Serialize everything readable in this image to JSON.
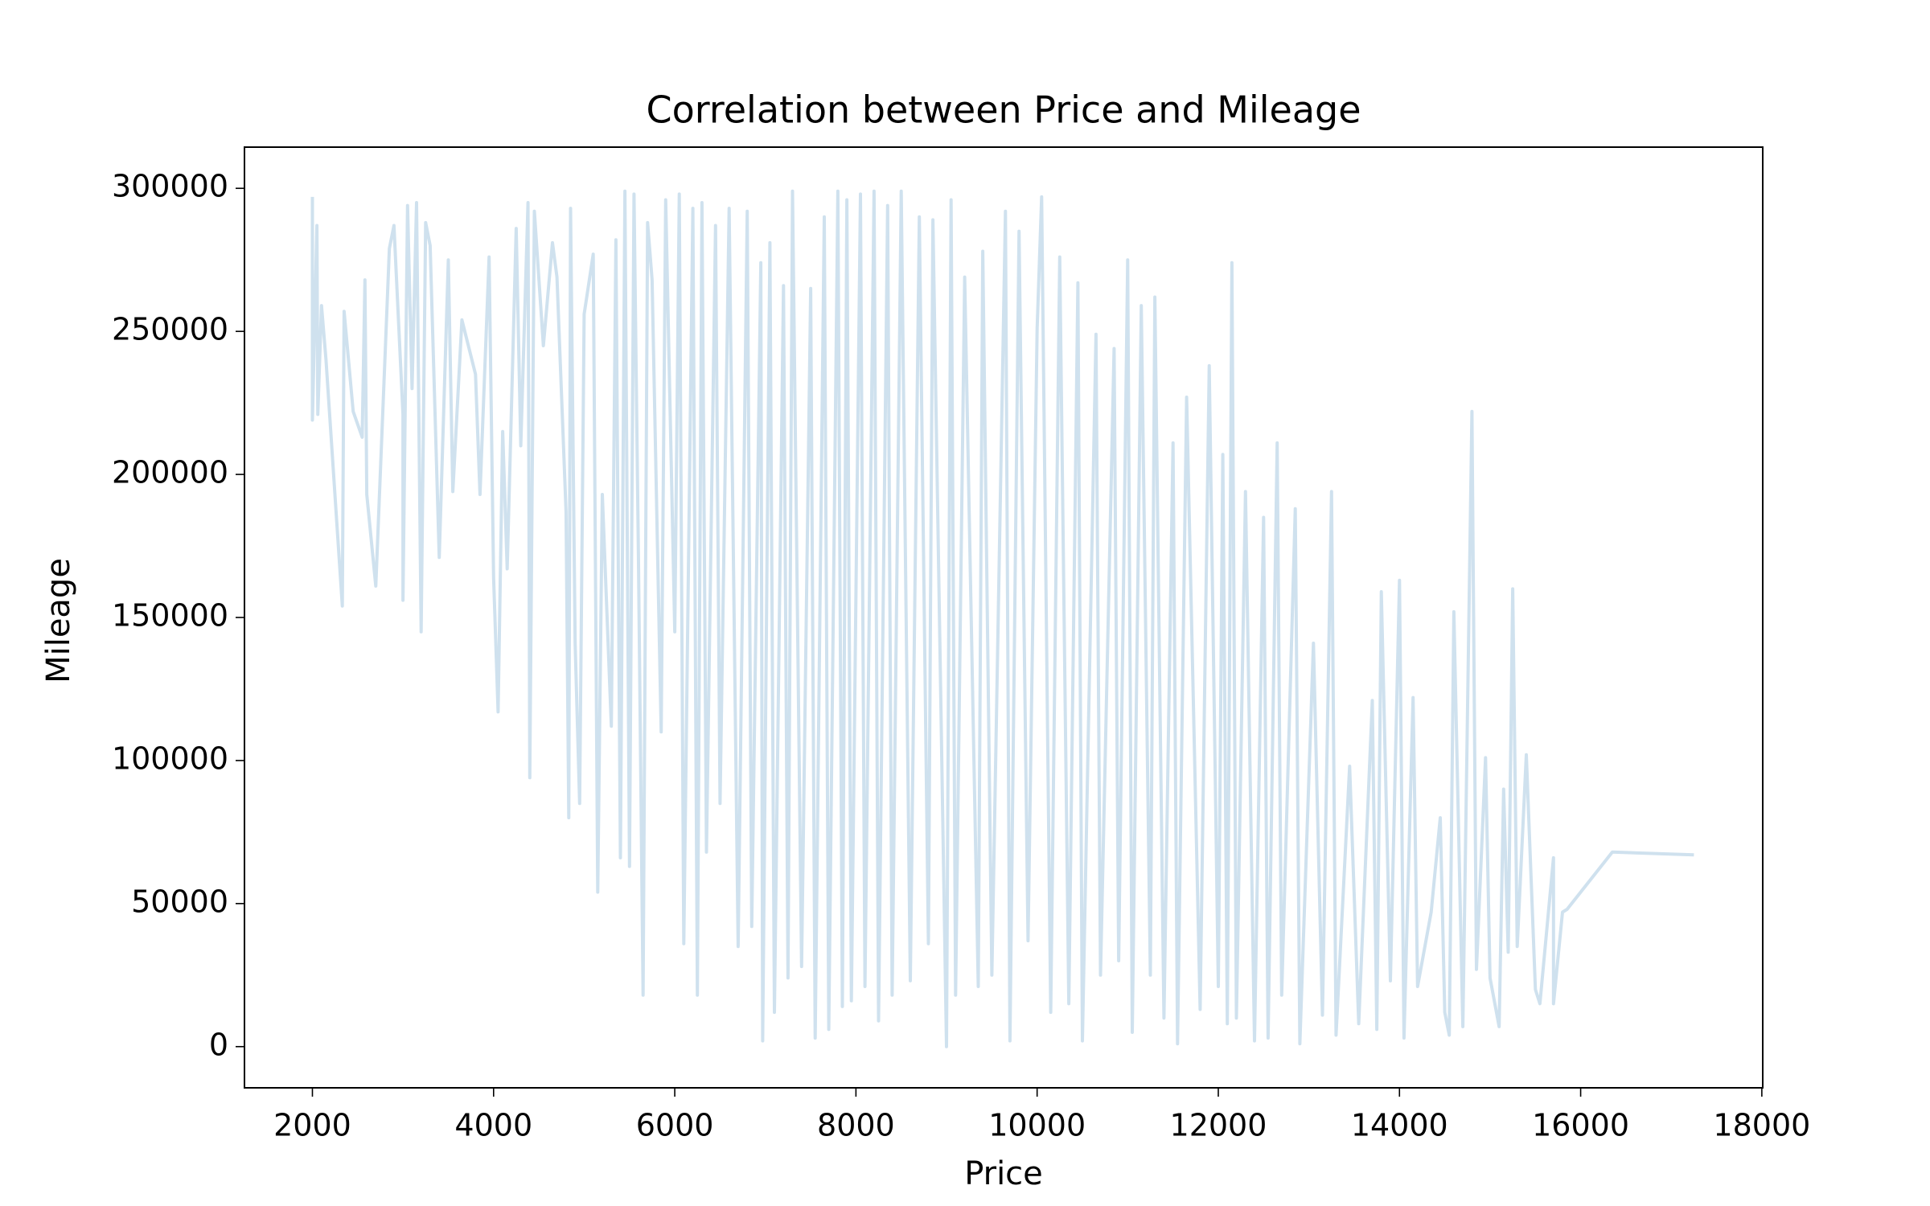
{
  "chart_data": {
    "type": "line",
    "title": "Correlation between Price and Mileage",
    "x_label": "Price",
    "y_label": "Mileage",
    "color": "#cfe1ee",
    "x": [
      2000,
      2000,
      2050,
      2060,
      2100,
      2150,
      2330,
      2350,
      2450,
      2550,
      2580,
      2600,
      2700,
      2850,
      2900,
      3000,
      3000,
      3050,
      3100,
      3150,
      3200,
      3250,
      3300,
      3400,
      3500,
      3550,
      3650,
      3800,
      3850,
      3950,
      4000,
      4050,
      4100,
      4150,
      4250,
      4300,
      4380,
      4400,
      4450,
      4550,
      4650,
      4700,
      4800,
      4830,
      4850,
      4900,
      4950,
      5000,
      5100,
      5150,
      5200,
      5300,
      5350,
      5400,
      5450,
      5500,
      5550,
      5600,
      5650,
      5700,
      5750,
      5850,
      5900,
      6000,
      6050,
      6100,
      6200,
      6250,
      6300,
      6350,
      6450,
      6500,
      6600,
      6700,
      6800,
      6850,
      6950,
      6970,
      7050,
      7100,
      7200,
      7250,
      7300,
      7400,
      7500,
      7550,
      7650,
      7700,
      7800,
      7850,
      7900,
      7950,
      8050,
      8100,
      8200,
      8250,
      8350,
      8400,
      8500,
      8600,
      8700,
      8800,
      8850,
      9000,
      9050,
      9100,
      9200,
      9350,
      9400,
      9500,
      9650,
      9700,
      9800,
      9900,
      10000,
      10050,
      10150,
      10250,
      10350,
      10450,
      10500,
      10650,
      10700,
      10850,
      10900,
      11000,
      11050,
      11150,
      11250,
      11300,
      11400,
      11500,
      11550,
      11650,
      11800,
      11900,
      12000,
      12050,
      12100,
      12150,
      12200,
      12300,
      12400,
      12500,
      12550,
      12650,
      12700,
      12850,
      12900,
      13050,
      13150,
      13250,
      13300,
      13450,
      13550,
      13700,
      13750,
      13800,
      13900,
      14000,
      14050,
      14150,
      14200,
      14350,
      14450,
      14500,
      14550,
      14600,
      14700,
      14800,
      14850,
      14950,
      15000,
      15100,
      15150,
      15200,
      15250,
      15300,
      15400,
      15500,
      15550,
      15700,
      15700,
      15800,
      15850,
      16350,
      17250
    ],
    "values": [
      297000,
      219000,
      287000,
      221000,
      259000,
      240000,
      154000,
      257000,
      222000,
      213000,
      268000,
      193000,
      161000,
      279000,
      287000,
      221000,
      156000,
      294000,
      230000,
      295000,
      145000,
      288000,
      280000,
      171000,
      275000,
      194000,
      254000,
      235000,
      193000,
      276000,
      164000,
      117000,
      215000,
      167000,
      286000,
      210000,
      295000,
      94000,
      292000,
      245000,
      281000,
      269000,
      187000,
      80000,
      293000,
      141000,
      85000,
      256000,
      277000,
      54000,
      193000,
      112000,
      282000,
      66000,
      299000,
      63000,
      298000,
      169000,
      18000,
      288000,
      268000,
      110000,
      296000,
      145000,
      298000,
      36000,
      293000,
      18000,
      295000,
      68000,
      287000,
      85000,
      293000,
      35000,
      292000,
      42000,
      274000,
      2000,
      281000,
      12000,
      266000,
      24000,
      299000,
      28000,
      265000,
      3000,
      290000,
      6000,
      299000,
      14000,
      296000,
      16000,
      298000,
      21000,
      299000,
      9000,
      294000,
      18000,
      299000,
      23000,
      290000,
      36000,
      289000,
      0,
      296000,
      18000,
      269000,
      21000,
      278000,
      25000,
      292000,
      2000,
      285000,
      37000,
      251000,
      297000,
      12000,
      276000,
      15000,
      267000,
      2000,
      249000,
      25000,
      244000,
      30000,
      275000,
      5000,
      259000,
      25000,
      262000,
      10000,
      211000,
      1000,
      227000,
      13000,
      238000,
      21000,
      207000,
      8000,
      274000,
      10000,
      194000,
      2000,
      185000,
      3000,
      211000,
      18000,
      188000,
      1000,
      141000,
      11000,
      194000,
      4000,
      98000,
      8000,
      121000,
      6000,
      159000,
      23000,
      163000,
      3000,
      122000,
      21000,
      47000,
      80000,
      12000,
      4000,
      152000,
      7000,
      222000,
      27000,
      101000,
      24000,
      7000,
      90000,
      33000,
      160000,
      35000,
      102000,
      20000,
      15000,
      66000,
      15000,
      47000,
      48000,
      68000,
      67000
    ],
    "xlim": [
      1250,
      18010
    ],
    "ylim": [
      -14400,
      314400
    ],
    "xticks": [
      2000,
      4000,
      6000,
      8000,
      10000,
      12000,
      14000,
      16000,
      18000
    ],
    "yticks": [
      0,
      50000,
      100000,
      150000,
      200000,
      250000,
      300000
    ]
  }
}
